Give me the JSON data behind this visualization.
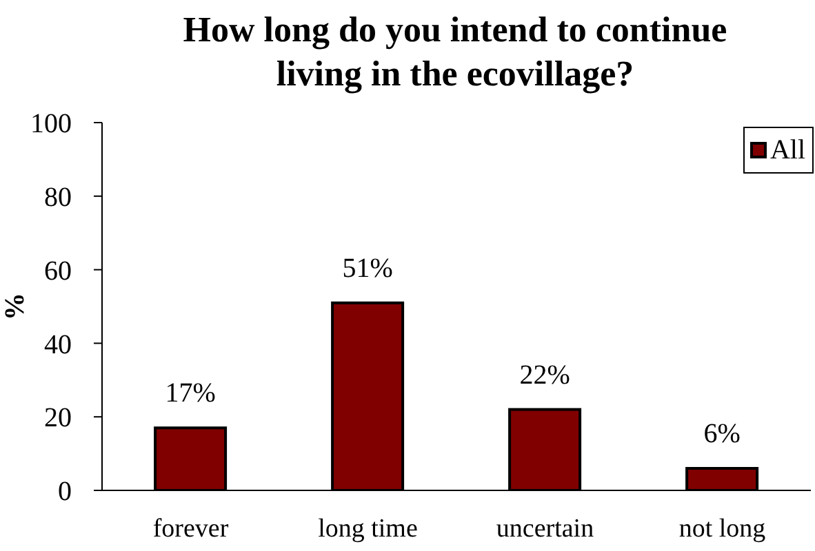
{
  "chart_data": {
    "type": "bar",
    "title": "How long do you intend to continue living in the ecovillage?",
    "ylabel": "%",
    "categories": [
      "forever",
      "long time",
      "uncertain",
      "not long"
    ],
    "series": [
      {
        "name": "All",
        "color": "#800000",
        "values": [
          17,
          51,
          22,
          6
        ],
        "value_labels": [
          "17%",
          "51%",
          "22%",
          "6%"
        ]
      }
    ],
    "ylim": [
      0,
      100
    ],
    "yticks": [
      0,
      20,
      40,
      60,
      80,
      100
    ],
    "legend": "top right"
  }
}
